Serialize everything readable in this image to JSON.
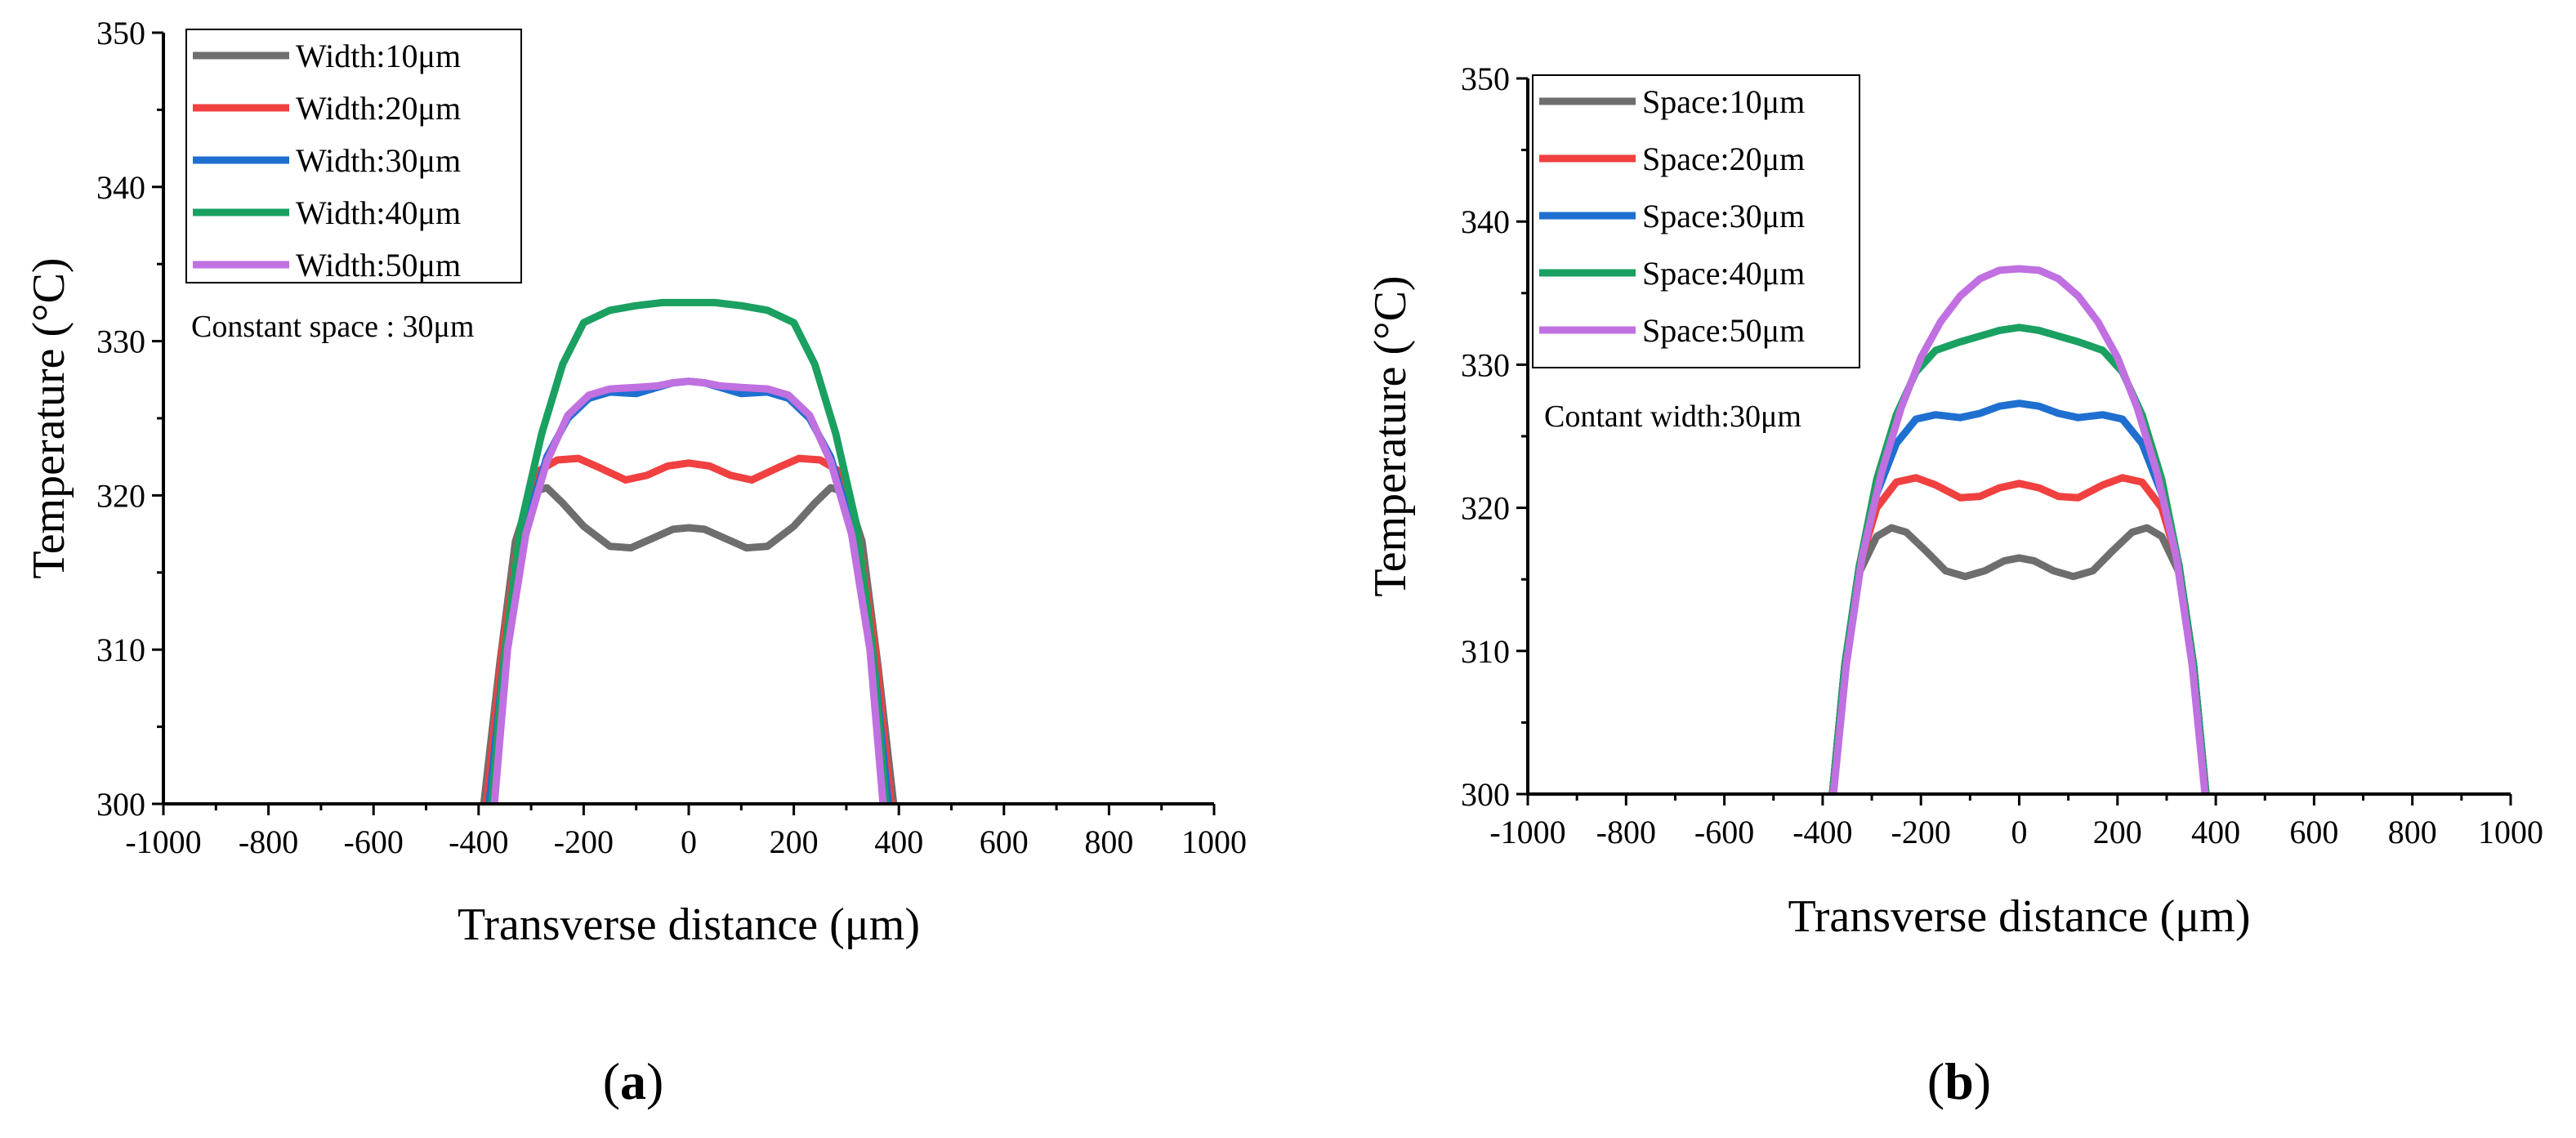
{
  "chart_data": [
    {
      "id": "a",
      "type": "line",
      "panel_label": "(a)",
      "panel_letter": "a",
      "xlabel": "Transverse distance (μm)",
      "ylabel": "Temperature (°C)",
      "xlim": [
        -1000,
        1000
      ],
      "ylim": [
        300,
        350
      ],
      "xticks": [
        -1000,
        -800,
        -600,
        -400,
        -200,
        0,
        200,
        400,
        600,
        800,
        1000
      ],
      "yticks": [
        300,
        310,
        320,
        330,
        340,
        350
      ],
      "annotation": "Constant space : 30μm",
      "legend_position": "top-left",
      "series": [
        {
          "name": "Width:10μm",
          "color": "#6e6e6e",
          "x": [
            -390,
            -360,
            -330,
            -300,
            -270,
            -240,
            -200,
            -150,
            -110,
            -70,
            -30,
            0,
            30,
            70,
            110,
            150,
            200,
            240,
            270,
            300,
            330,
            360,
            390
          ],
          "y": [
            300,
            309,
            317,
            320.2,
            320.5,
            319.5,
            318.0,
            316.7,
            316.6,
            317.2,
            317.8,
            317.9,
            317.8,
            317.2,
            316.6,
            316.7,
            318.0,
            319.5,
            320.5,
            320.2,
            317,
            309,
            300
          ]
        },
        {
          "name": "Width:20μm",
          "color": "#f04040",
          "x": [
            -385,
            -355,
            -320,
            -290,
            -250,
            -210,
            -170,
            -120,
            -80,
            -40,
            0,
            40,
            80,
            120,
            170,
            210,
            250,
            290,
            320,
            355,
            385
          ],
          "y": [
            300,
            310,
            318,
            321.5,
            322.3,
            322.4,
            321.8,
            321.0,
            321.3,
            321.9,
            322.1,
            321.9,
            321.3,
            321.0,
            321.8,
            322.4,
            322.3,
            321.5,
            318,
            310,
            300
          ]
        },
        {
          "name": "Width:30μm",
          "color": "#1e6fd0",
          "x": [
            -380,
            -350,
            -310,
            -270,
            -230,
            -190,
            -150,
            -100,
            -60,
            -30,
            0,
            30,
            60,
            100,
            150,
            190,
            230,
            270,
            310,
            350,
            380
          ],
          "y": [
            300,
            310,
            318,
            322.5,
            325,
            326.3,
            326.7,
            326.6,
            327.0,
            327.3,
            327.4,
            327.3,
            327.0,
            326.6,
            326.7,
            326.3,
            325,
            322.5,
            318,
            310,
            300
          ]
        },
        {
          "name": "Width:40μm",
          "color": "#1aa060",
          "x": [
            -375,
            -350,
            -320,
            -280,
            -240,
            -200,
            -150,
            -100,
            -50,
            0,
            50,
            100,
            150,
            200,
            240,
            280,
            320,
            350,
            375
          ],
          "y": [
            300,
            310,
            318,
            324,
            328.5,
            331.2,
            332.0,
            332.3,
            332.5,
            332.5,
            332.5,
            332.3,
            332.0,
            331.2,
            328.5,
            324,
            318,
            310,
            300
          ]
        },
        {
          "name": "Width:50μm",
          "color": "#c070e0",
          "x": [
            -370,
            -345,
            -310,
            -270,
            -230,
            -190,
            -150,
            -100,
            -60,
            -30,
            0,
            30,
            60,
            100,
            150,
            190,
            230,
            270,
            310,
            345,
            370
          ],
          "y": [
            300,
            310,
            317.5,
            322.2,
            325.2,
            326.5,
            326.9,
            327.0,
            327.1,
            327.3,
            327.4,
            327.3,
            327.1,
            327.0,
            326.9,
            326.5,
            325.2,
            322.2,
            317.5,
            310,
            300
          ]
        }
      ]
    },
    {
      "id": "b",
      "type": "line",
      "panel_label": "(b)",
      "panel_letter": "b",
      "xlabel": "Transverse distance (μm)",
      "ylabel": "Temperature (°C)",
      "xlim": [
        -1000,
        1000
      ],
      "ylim": [
        300,
        350
      ],
      "xticks": [
        -1000,
        -800,
        -600,
        -400,
        -200,
        0,
        200,
        400,
        600,
        800,
        1000
      ],
      "yticks": [
        300,
        310,
        320,
        330,
        340,
        350
      ],
      "annotation": "Contant width:30μm",
      "legend_position": "top-left",
      "series": [
        {
          "name": "Space:10μm",
          "color": "#6e6e6e",
          "x": [
            -380,
            -355,
            -325,
            -290,
            -260,
            -230,
            -190,
            -150,
            -110,
            -70,
            -30,
            0,
            30,
            70,
            110,
            150,
            190,
            230,
            260,
            290,
            325,
            355,
            380
          ],
          "y": [
            300,
            309,
            315.5,
            318.0,
            318.6,
            318.3,
            317.0,
            315.6,
            315.2,
            315.6,
            316.3,
            316.5,
            316.3,
            315.6,
            315.2,
            315.6,
            317.0,
            318.3,
            318.6,
            318.0,
            315.5,
            309,
            300
          ]
        },
        {
          "name": "Space:20μm",
          "color": "#f04040",
          "x": [
            -380,
            -355,
            -325,
            -290,
            -250,
            -210,
            -170,
            -120,
            -80,
            -40,
            0,
            40,
            80,
            120,
            170,
            210,
            250,
            290,
            325,
            355,
            380
          ],
          "y": [
            300,
            309,
            316,
            320,
            321.8,
            322.1,
            321.6,
            320.7,
            320.8,
            321.4,
            321.7,
            321.4,
            320.8,
            320.7,
            321.6,
            322.1,
            321.8,
            320,
            316,
            309,
            300
          ]
        },
        {
          "name": "Space:30μm",
          "color": "#1e6fd0",
          "x": [
            -380,
            -355,
            -325,
            -290,
            -250,
            -210,
            -170,
            -120,
            -80,
            -40,
            0,
            40,
            80,
            120,
            170,
            210,
            250,
            290,
            325,
            355,
            380
          ],
          "y": [
            300,
            309,
            316,
            321,
            324.5,
            326.2,
            326.5,
            326.3,
            326.6,
            327.1,
            327.3,
            327.1,
            326.6,
            326.3,
            326.5,
            326.2,
            324.5,
            321,
            316,
            309,
            300
          ]
        },
        {
          "name": "Space:40μm",
          "color": "#1aa060",
          "x": [
            -380,
            -355,
            -325,
            -290,
            -250,
            -210,
            -170,
            -120,
            -80,
            -40,
            0,
            40,
            80,
            120,
            170,
            210,
            250,
            290,
            325,
            355,
            380
          ],
          "y": [
            300,
            309,
            316,
            322,
            326.5,
            329.5,
            331.0,
            331.6,
            332.0,
            332.4,
            332.6,
            332.4,
            332.0,
            331.6,
            331.0,
            329.5,
            326.5,
            322,
            316,
            309,
            300
          ]
        },
        {
          "name": "Space:50μm",
          "color": "#c070e0",
          "x": [
            -378,
            -352,
            -320,
            -280,
            -240,
            -200,
            -160,
            -120,
            -80,
            -40,
            0,
            40,
            80,
            120,
            160,
            200,
            240,
            280,
            320,
            352,
            378
          ],
          "y": [
            300,
            309,
            316.5,
            322.5,
            327.0,
            330.5,
            333.0,
            334.8,
            336.0,
            336.6,
            336.7,
            336.6,
            336.0,
            334.8,
            333.0,
            330.5,
            327.0,
            322.5,
            316.5,
            309,
            300
          ]
        }
      ]
    }
  ]
}
